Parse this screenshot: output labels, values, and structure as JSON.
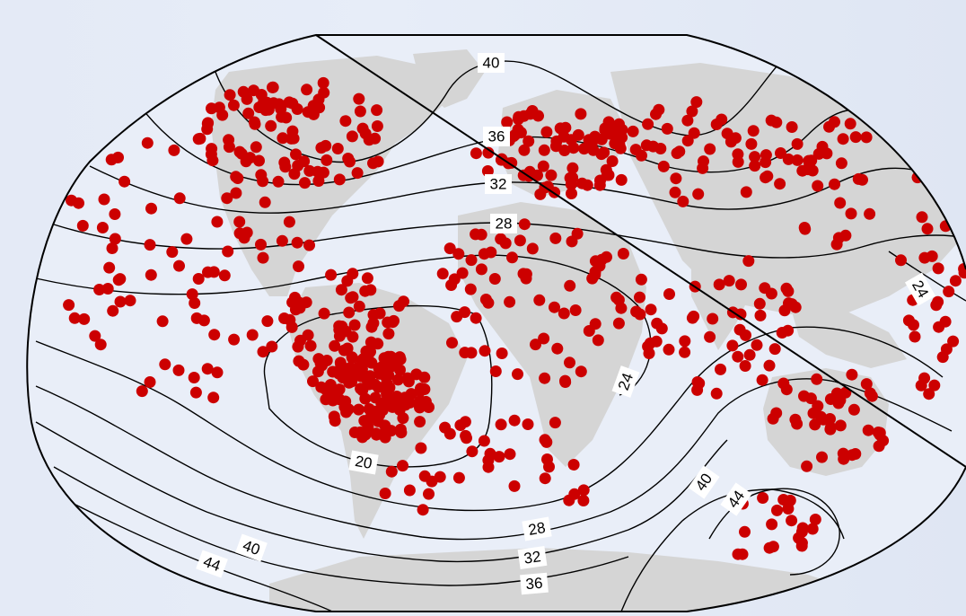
{
  "map": {
    "projection": "Winkel-Tripel-like pseudocylindrical (world, Atlantic-centred)",
    "background_color": "#e6ecf7",
    "land_color": "#d5d5d5",
    "ocean_color": "#e9eef8",
    "marker_color": "#cc0000",
    "contour_color": "#000000",
    "contour_labels": [
      {
        "text": "40"
      },
      {
        "text": "36"
      },
      {
        "text": "32"
      },
      {
        "text": "28"
      },
      {
        "text": "24"
      },
      {
        "text": "24"
      },
      {
        "text": "20"
      },
      {
        "text": "40"
      },
      {
        "text": "44"
      },
      {
        "text": "40"
      },
      {
        "text": "44"
      },
      {
        "text": "28"
      },
      {
        "text": "32"
      },
      {
        "text": "36"
      }
    ]
  }
}
